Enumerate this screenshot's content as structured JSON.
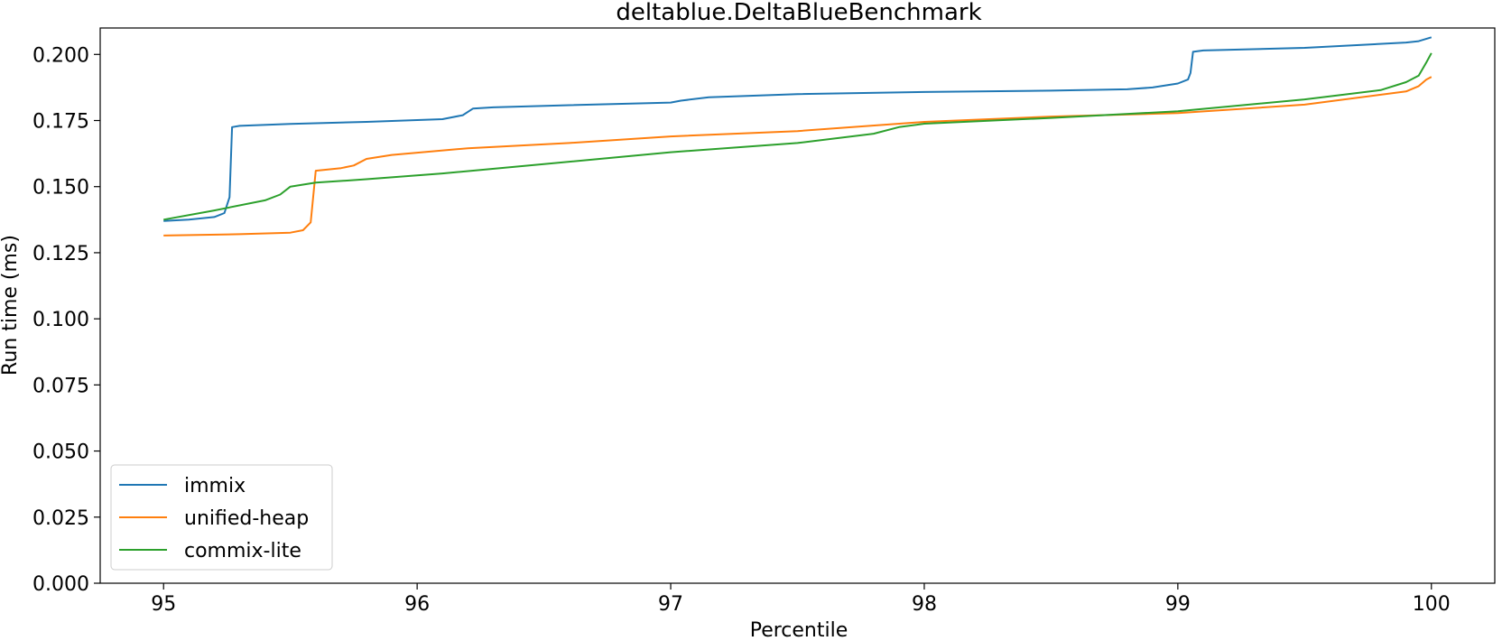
{
  "chart_data": {
    "type": "line",
    "title": "deltablue.DeltaBlueBenchmark",
    "xlabel": "Percentile",
    "ylabel": "Run time (ms)",
    "xlim": [
      94.75,
      100.25
    ],
    "ylim": [
      0.0,
      0.21
    ],
    "xticks": [
      95,
      96,
      97,
      98,
      99,
      100
    ],
    "xtick_labels": [
      "95",
      "96",
      "97",
      "98",
      "99",
      "100"
    ],
    "yticks": [
      0.0,
      0.025,
      0.05,
      0.075,
      0.1,
      0.125,
      0.15,
      0.175,
      0.2
    ],
    "ytick_labels": [
      "0.000",
      "0.025",
      "0.050",
      "0.075",
      "0.100",
      "0.125",
      "0.150",
      "0.175",
      "0.200"
    ],
    "legend_position": "lower-left",
    "grid": false,
    "series": [
      {
        "name": "immix",
        "color": "#1f77b4",
        "x": [
          95.0,
          95.1,
          95.2,
          95.24,
          95.26,
          95.27,
          95.3,
          95.5,
          95.8,
          96.1,
          96.18,
          96.22,
          96.3,
          96.6,
          97.0,
          97.04,
          97.15,
          97.5,
          98.0,
          98.5,
          98.8,
          98.9,
          99.0,
          99.04,
          99.05,
          99.06,
          99.1,
          99.5,
          99.9,
          99.95,
          100.0
        ],
        "values": [
          0.137,
          0.1375,
          0.1385,
          0.14,
          0.146,
          0.1725,
          0.173,
          0.1737,
          0.1745,
          0.1755,
          0.177,
          0.1795,
          0.18,
          0.1808,
          0.1818,
          0.1825,
          0.1838,
          0.185,
          0.1858,
          0.1863,
          0.1868,
          0.1875,
          0.189,
          0.1905,
          0.193,
          0.201,
          0.2015,
          0.2025,
          0.2045,
          0.205,
          0.2065
        ]
      },
      {
        "name": "unified-heap",
        "color": "#ff7f0e",
        "x": [
          95.0,
          95.3,
          95.5,
          95.55,
          95.58,
          95.6,
          95.7,
          95.75,
          95.8,
          95.9,
          96.2,
          96.6,
          97.0,
          97.5,
          98.0,
          98.5,
          99.0,
          99.5,
          99.9,
          99.95,
          99.98,
          100.0
        ],
        "values": [
          0.1315,
          0.132,
          0.1326,
          0.1335,
          0.1365,
          0.156,
          0.157,
          0.158,
          0.1605,
          0.162,
          0.1645,
          0.1665,
          0.169,
          0.171,
          0.1745,
          0.1765,
          0.1778,
          0.181,
          0.186,
          0.188,
          0.1905,
          0.1915
        ]
      },
      {
        "name": "commix-lite",
        "color": "#2ca02c",
        "x": [
          95.0,
          95.2,
          95.4,
          95.46,
          95.5,
          95.6,
          95.8,
          96.1,
          96.5,
          97.0,
          97.5,
          97.8,
          97.9,
          98.0,
          98.5,
          99.0,
          99.5,
          99.8,
          99.9,
          99.95,
          99.98,
          100.0
        ],
        "values": [
          0.1375,
          0.141,
          0.1448,
          0.147,
          0.15,
          0.1515,
          0.1528,
          0.155,
          0.1585,
          0.163,
          0.1665,
          0.17,
          0.1725,
          0.1738,
          0.176,
          0.1785,
          0.183,
          0.1865,
          0.1895,
          0.192,
          0.197,
          0.2005
        ]
      }
    ]
  }
}
